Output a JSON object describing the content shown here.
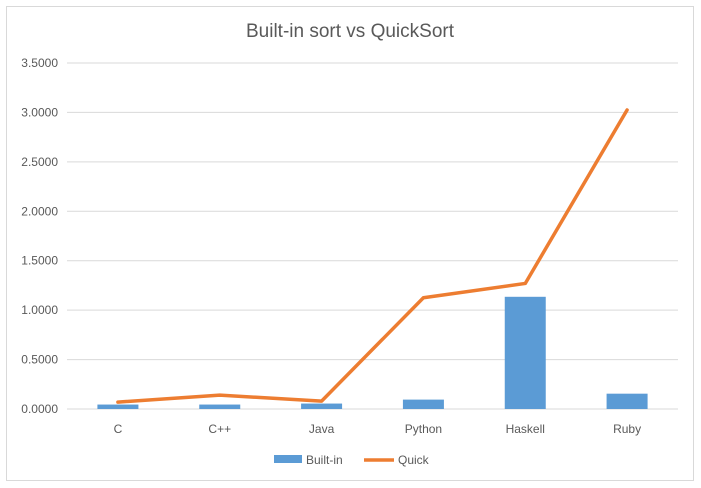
{
  "chart_data": {
    "type": "bar",
    "title": "Built-in sort vs QuickSort",
    "categories": [
      "C",
      "C++",
      "Java",
      "Python",
      "Haskell",
      "Ruby"
    ],
    "series": [
      {
        "name": "Built-in",
        "type": "bar",
        "color": "#5b9bd5",
        "values": [
          0.045,
          0.045,
          0.055,
          0.095,
          1.135,
          0.155
        ]
      },
      {
        "name": "Quick",
        "type": "line",
        "color": "#ed7d31",
        "values": [
          0.07,
          0.14,
          0.08,
          1.125,
          1.27,
          3.025
        ]
      }
    ],
    "ylim": [
      0,
      3.5
    ],
    "yticks": [
      "0.0000",
      "0.5000",
      "1.0000",
      "1.5000",
      "2.0000",
      "2.5000",
      "3.0000",
      "3.5000"
    ],
    "grid": true,
    "legend_position": "bottom"
  }
}
